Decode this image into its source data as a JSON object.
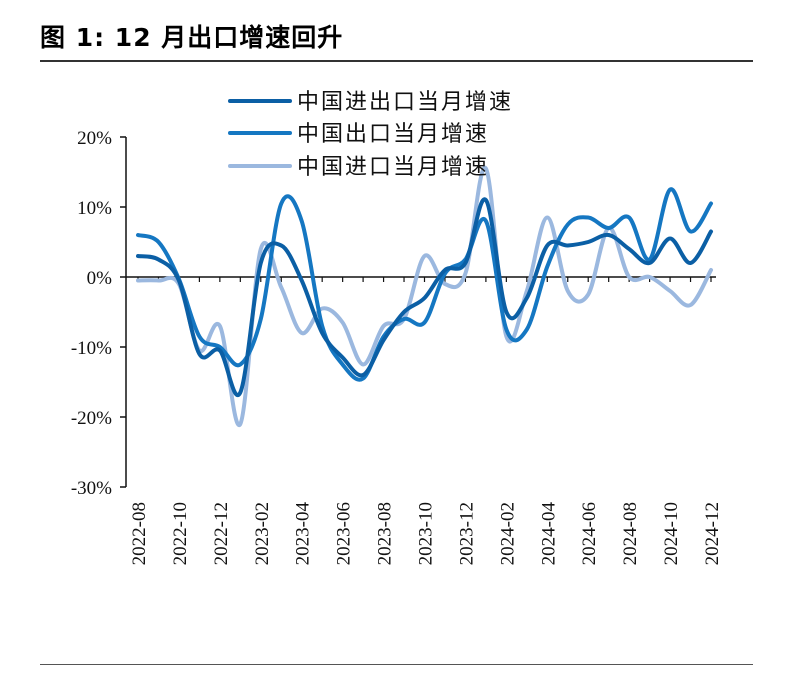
{
  "figure": {
    "title": "图 1:  12 月出口增速回升"
  },
  "chart_data": {
    "type": "line",
    "title": "图 1:  12 月出口增速回升",
    "xlabel": "",
    "ylabel": "",
    "ylim": [
      -30,
      20
    ],
    "yticks": [
      -30,
      -20,
      -10,
      0,
      10,
      20
    ],
    "ytick_labels": [
      "-30%",
      "-20%",
      "-10%",
      "0%",
      "10%",
      "20%"
    ],
    "xtick_labels": [
      "2022-08",
      "2022-10",
      "2022-12",
      "2023-02",
      "2023-04",
      "2023-06",
      "2023-08",
      "2023-10",
      "2023-12",
      "2024-02",
      "2024-04",
      "2024-06",
      "2024-08",
      "2024-10",
      "2024-12"
    ],
    "x": [
      "2022-08",
      "2022-09",
      "2022-10",
      "2022-11",
      "2022-12",
      "2023-01",
      "2023-02",
      "2023-03",
      "2023-04",
      "2023-05",
      "2023-06",
      "2023-07",
      "2023-08",
      "2023-09",
      "2023-10",
      "2023-11",
      "2023-12",
      "2024-01",
      "2024-02",
      "2024-03",
      "2024-04",
      "2024-05",
      "2024-06",
      "2024-07",
      "2024-08",
      "2024-09",
      "2024-10",
      "2024-11",
      "2024-12"
    ],
    "legend_position": "top",
    "series": [
      {
        "name": "中国进出口当月增速",
        "color": "#0b5fa5",
        "values": [
          3.0,
          2.5,
          -0.5,
          -11.0,
          -10.5,
          -16.5,
          2.0,
          4.5,
          -0.5,
          -8.0,
          -11.5,
          -14.0,
          -9.0,
          -5.0,
          -3.0,
          1.0,
          2.0,
          11.0,
          -5.0,
          -3.0,
          4.5,
          4.5,
          5.0,
          6.0,
          4.0,
          2.0,
          5.5,
          2.0,
          6.5
        ]
      },
      {
        "name": "中国出口当月增速",
        "color": "#1577c2",
        "values": [
          6.0,
          5.0,
          -0.3,
          -8.5,
          -10.0,
          -12.5,
          -6.0,
          10.5,
          8.0,
          -7.0,
          -12.5,
          -14.5,
          -8.5,
          -6.0,
          -6.5,
          0.5,
          2.5,
          8.0,
          -7.5,
          -7.5,
          1.5,
          7.5,
          8.5,
          7.0,
          8.5,
          2.5,
          12.5,
          6.5,
          10.5
        ]
      },
      {
        "name": "中国进口当月增速",
        "color": "#9bb8df",
        "values": [
          -0.5,
          -0.5,
          -1.0,
          -10.5,
          -7.0,
          -21.0,
          4.0,
          -1.5,
          -8.0,
          -4.5,
          -6.5,
          -12.5,
          -7.0,
          -6.0,
          3.0,
          -1.0,
          0.5,
          15.5,
          -8.5,
          -2.0,
          8.5,
          -2.0,
          -2.5,
          7.0,
          0.0,
          0.0,
          -2.0,
          -4.0,
          1.0
        ]
      }
    ]
  }
}
